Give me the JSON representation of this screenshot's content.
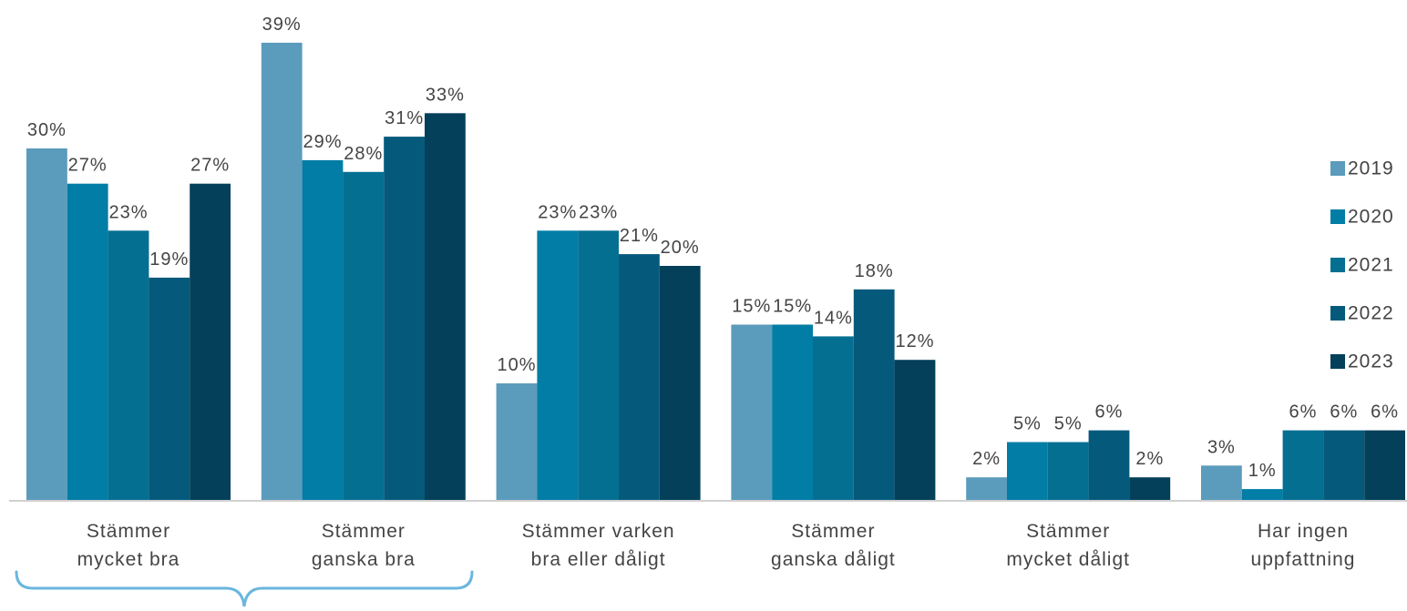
{
  "chart_data": {
    "type": "bar",
    "title": "",
    "xlabel": "",
    "ylabel": "",
    "ylim": [
      0,
      40
    ],
    "grid": false,
    "legend_position": "right",
    "categories": [
      [
        "Stämmer",
        "mycket bra"
      ],
      [
        "Stämmer",
        "ganska bra"
      ],
      [
        "Stämmer varken",
        "bra eller dåligt"
      ],
      [
        "Stämmer",
        "ganska dåligt"
      ],
      [
        "Stämmer",
        "mycket dåligt"
      ],
      [
        "Har ingen",
        "uppfattning"
      ]
    ],
    "series": [
      {
        "name": "2019",
        "color": "#5B9BBC",
        "values": [
          30,
          39,
          10,
          15,
          2,
          3
        ],
        "labels": [
          "30%",
          "39%",
          "10%",
          "15%",
          "2%",
          "3%"
        ]
      },
      {
        "name": "2020",
        "color": "#017DA6",
        "values": [
          27,
          29,
          23,
          15,
          5,
          1
        ],
        "labels": [
          "27%",
          "29%",
          "23%",
          "15%",
          "5%",
          "1%"
        ]
      },
      {
        "name": "2021",
        "color": "#056F92",
        "values": [
          23,
          28,
          23,
          14,
          5,
          6
        ],
        "labels": [
          "23%",
          "28%",
          "23%",
          "14%",
          "5%",
          "6%"
        ]
      },
      {
        "name": "2022",
        "color": "#055A7C",
        "values": [
          19,
          31,
          21,
          18,
          6,
          6
        ],
        "labels": [
          "19%",
          "31%",
          "21%",
          "18%",
          "6%",
          "6%"
        ]
      },
      {
        "name": "2023",
        "color": "#04405A",
        "values": [
          27,
          33,
          20,
          12,
          2,
          6
        ],
        "labels": [
          "27%",
          "33%",
          "20%",
          "12%",
          "2%",
          "6%"
        ]
      }
    ],
    "annotations": {
      "brace_color": "#6AB6DF"
    }
  }
}
